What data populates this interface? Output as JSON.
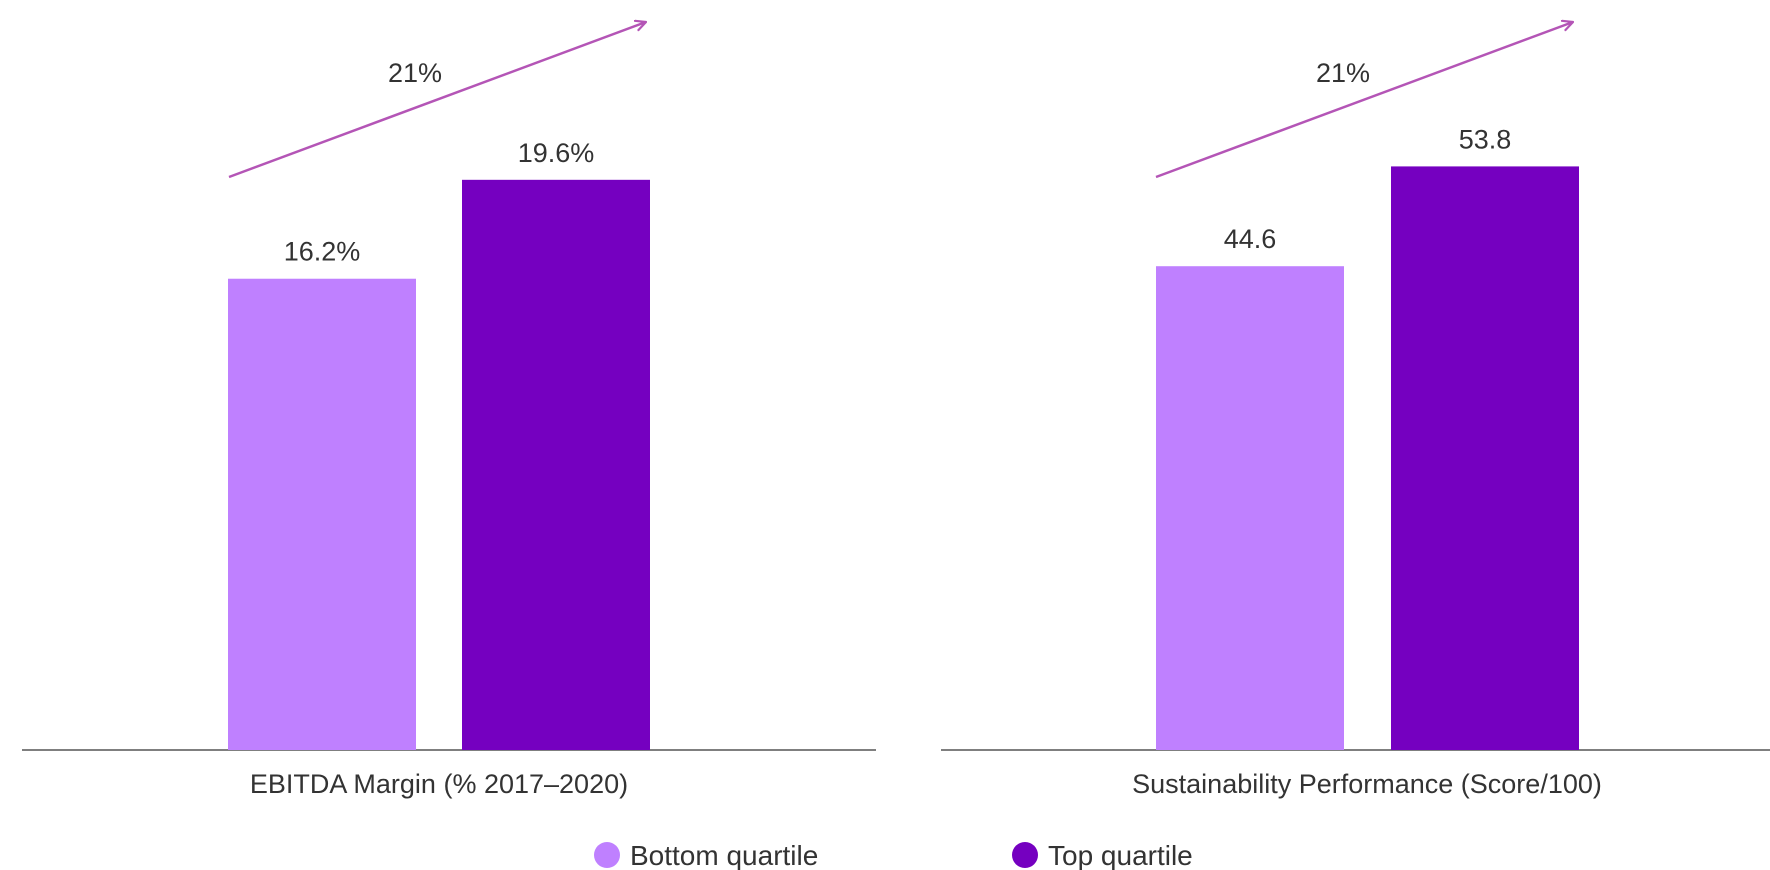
{
  "chart_data": [
    {
      "type": "bar",
      "xlabel": "EBITDA Margin (% 2017–2020)",
      "categories": [
        "Bottom quartile",
        "Top quartile"
      ],
      "values": [
        16.2,
        19.6
      ],
      "value_labels": [
        "16.2%",
        "19.6%"
      ],
      "ylim": [
        0,
        22
      ],
      "growth_annotation": "21%",
      "grid": false
    },
    {
      "type": "bar",
      "xlabel": "Sustainability Performance (Score/100)",
      "categories": [
        "Bottom quartile",
        "Top quartile"
      ],
      "values": [
        44.6,
        53.8
      ],
      "value_labels": [
        "44.6",
        "53.8"
      ],
      "ylim": [
        0,
        59
      ],
      "growth_annotation": "21%",
      "grid": false
    }
  ],
  "legend": {
    "placement": "bottom-center",
    "items": [
      {
        "label": "Bottom quartile",
        "color": "#bf80ff"
      },
      {
        "label": "Top quartile",
        "color": "#7500c0"
      }
    ]
  },
  "colors": {
    "bottom_quartile": "#bf80ff",
    "top_quartile": "#7500c0",
    "arrow": "#b455b6",
    "axis": "#555555"
  }
}
